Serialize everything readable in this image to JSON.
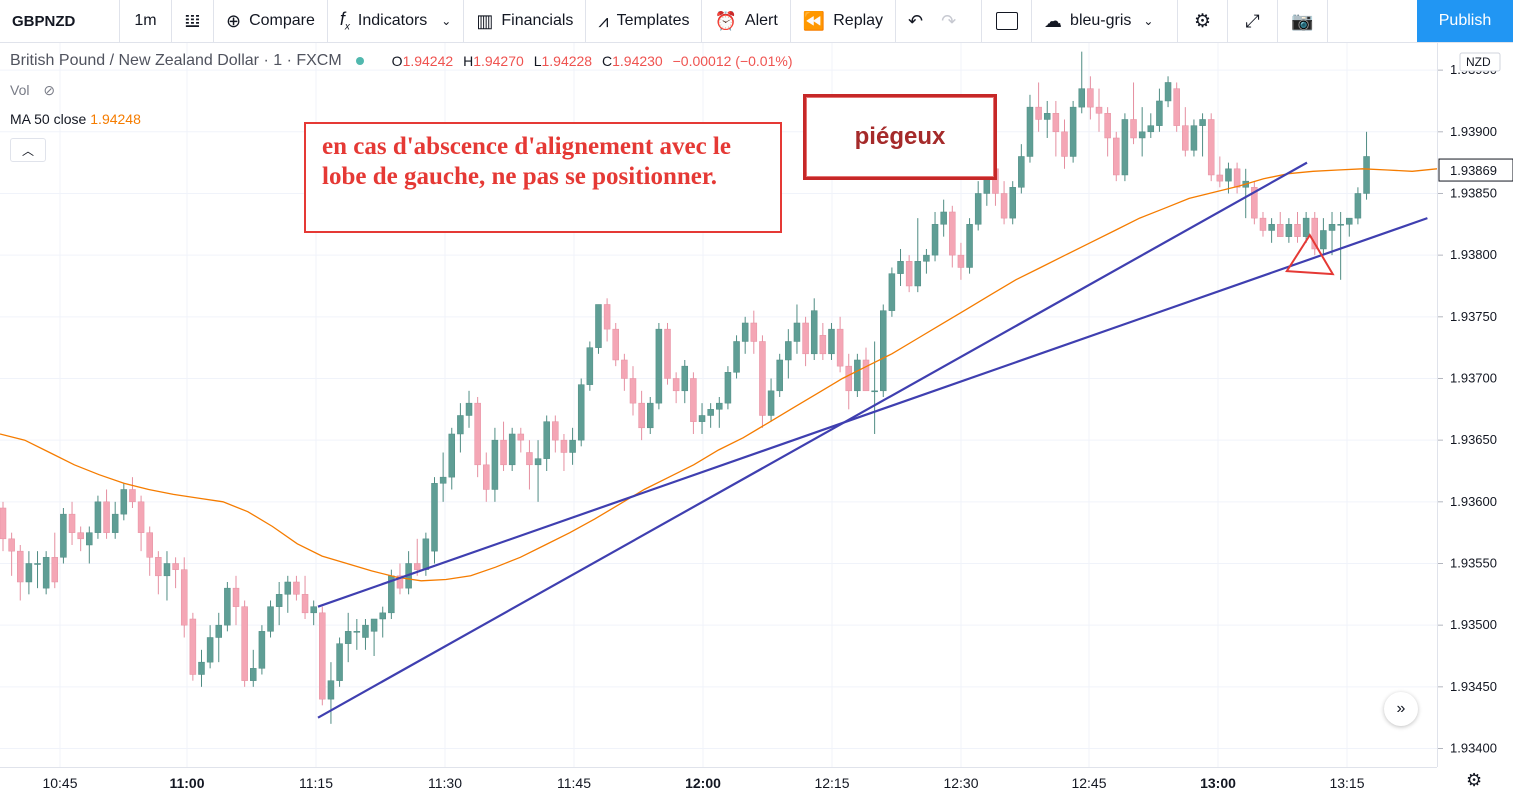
{
  "toolbar": {
    "symbol": "GBPNZD",
    "interval": "1m",
    "compare": "Compare",
    "indicators": "Indicators",
    "financials": "Financials",
    "templates": "Templates",
    "alert": "Alert",
    "replay": "Replay",
    "layout_name": "bleu-gris",
    "publish": "Publish"
  },
  "legend": {
    "title": "British Pound / New Zealand Dollar · 1 · FXCM",
    "o_label": "O",
    "o": "1.94242",
    "h_label": "H",
    "h": "1.94270",
    "l_label": "L",
    "l": "1.94228",
    "c_label": "C",
    "c": "1.94230",
    "change": "−0.00012 (−0.01%)",
    "vol": "Vol",
    "ma_label": "MA 50 close",
    "ma_value": "1.94248"
  },
  "annotations": {
    "note1": "en cas d'abscence d'alignement avec le lobe de gauche, ne pas se positionner.",
    "note2": "piégeux"
  },
  "price_axis": {
    "currency": "NZD",
    "current_price": "1.93869",
    "ticks": [
      "1.93950",
      "1.93900",
      "1.93850",
      "1.93800",
      "1.93750",
      "1.93700",
      "1.93650",
      "1.93600",
      "1.93550",
      "1.93500",
      "1.93450",
      "1.93400"
    ]
  },
  "time_axis": {
    "ticks": [
      "10:45",
      "11:00",
      "11:15",
      "11:30",
      "11:45",
      "12:00",
      "12:15",
      "12:30",
      "12:45",
      "13:00",
      "13:15"
    ]
  },
  "colors": {
    "up": "#5f9e95",
    "down": "#f4a6b5",
    "ma": "#f57c00",
    "trend": "#3f3fb0",
    "annot": "#e53935"
  },
  "chart_data": {
    "type": "candlestick",
    "symbol": "GBPNZD",
    "price_range": [
      1.93385,
      1.93972
    ],
    "ma_label": "MA 50 close",
    "candles": [
      [
        1.93595,
        1.936,
        1.9356,
        1.9357
      ],
      [
        1.9357,
        1.93575,
        1.9354,
        1.9356
      ],
      [
        1.9356,
        1.93565,
        1.9352,
        1.93535
      ],
      [
        1.93535,
        1.9356,
        1.93525,
        1.9355
      ],
      [
        1.9355,
        1.9356,
        1.9353,
        1.9355
      ],
      [
        1.9353,
        1.9356,
        1.93525,
        1.93555
      ],
      [
        1.93555,
        1.93575,
        1.9353,
        1.93535
      ],
      [
        1.93555,
        1.93595,
        1.9355,
        1.9359
      ],
      [
        1.9359,
        1.936,
        1.93565,
        1.93575
      ],
      [
        1.93575,
        1.9358,
        1.9356,
        1.9357
      ],
      [
        1.93565,
        1.9358,
        1.9355,
        1.93575
      ],
      [
        1.93575,
        1.93605,
        1.9357,
        1.936
      ],
      [
        1.936,
        1.9361,
        1.9357,
        1.93575
      ],
      [
        1.93575,
        1.936,
        1.9357,
        1.9359
      ],
      [
        1.9359,
        1.93615,
        1.93585,
        1.9361
      ],
      [
        1.9361,
        1.9362,
        1.93595,
        1.936
      ],
      [
        1.936,
        1.93605,
        1.9356,
        1.93575
      ],
      [
        1.93575,
        1.9358,
        1.9354,
        1.93555
      ],
      [
        1.93555,
        1.9356,
        1.93525,
        1.9354
      ],
      [
        1.9354,
        1.9356,
        1.9352,
        1.9355
      ],
      [
        1.9355,
        1.93555,
        1.9353,
        1.93545
      ],
      [
        1.93545,
        1.93555,
        1.9349,
        1.935
      ],
      [
        1.93505,
        1.9351,
        1.93455,
        1.9346
      ],
      [
        1.9346,
        1.9348,
        1.9345,
        1.9347
      ],
      [
        1.9347,
        1.935,
        1.93465,
        1.9349
      ],
      [
        1.9349,
        1.9351,
        1.9347,
        1.935
      ],
      [
        1.935,
        1.93535,
        1.93495,
        1.9353
      ],
      [
        1.9353,
        1.9354,
        1.935,
        1.93515
      ],
      [
        1.93515,
        1.9352,
        1.9345,
        1.93455
      ],
      [
        1.93455,
        1.9348,
        1.9345,
        1.93465
      ],
      [
        1.93465,
        1.935,
        1.9346,
        1.93495
      ],
      [
        1.93495,
        1.9352,
        1.9349,
        1.93515
      ],
      [
        1.93515,
        1.93535,
        1.935,
        1.93525
      ],
      [
        1.93525,
        1.9354,
        1.9351,
        1.93535
      ],
      [
        1.93535,
        1.9354,
        1.9352,
        1.93525
      ],
      [
        1.93525,
        1.9354,
        1.93505,
        1.9351
      ],
      [
        1.9351,
        1.9352,
        1.935,
        1.93515
      ],
      [
        1.9351,
        1.93515,
        1.93435,
        1.9344
      ],
      [
        1.9344,
        1.9347,
        1.9342,
        1.93455
      ],
      [
        1.93455,
        1.9349,
        1.9345,
        1.93485
      ],
      [
        1.93485,
        1.9351,
        1.9347,
        1.93495
      ],
      [
        1.93495,
        1.93505,
        1.9348,
        1.93495
      ],
      [
        1.9349,
        1.93505,
        1.9348,
        1.935
      ],
      [
        1.93495,
        1.93505,
        1.93475,
        1.93505
      ],
      [
        1.93505,
        1.93515,
        1.9349,
        1.9351
      ],
      [
        1.9351,
        1.93545,
        1.93505,
        1.9354
      ],
      [
        1.9354,
        1.9355,
        1.93525,
        1.9353
      ],
      [
        1.9353,
        1.9356,
        1.93525,
        1.9355
      ],
      [
        1.9355,
        1.9357,
        1.9354,
        1.93545
      ],
      [
        1.93545,
        1.93575,
        1.9354,
        1.9357
      ],
      [
        1.9356,
        1.9362,
        1.9355,
        1.93615
      ],
      [
        1.93615,
        1.9364,
        1.936,
        1.9362
      ],
      [
        1.9362,
        1.9366,
        1.9361,
        1.93655
      ],
      [
        1.93655,
        1.9368,
        1.9364,
        1.9367
      ],
      [
        1.9367,
        1.9369,
        1.9366,
        1.9368
      ],
      [
        1.9368,
        1.93685,
        1.9362,
        1.9363
      ],
      [
        1.9363,
        1.9364,
        1.936,
        1.9361
      ],
      [
        1.9361,
        1.9366,
        1.936,
        1.9365
      ],
      [
        1.9365,
        1.93665,
        1.93625,
        1.9363
      ],
      [
        1.9363,
        1.9366,
        1.93625,
        1.93655
      ],
      [
        1.93655,
        1.9366,
        1.9364,
        1.9365
      ],
      [
        1.9364,
        1.9365,
        1.9361,
        1.9363
      ],
      [
        1.9363,
        1.9365,
        1.936,
        1.93635
      ],
      [
        1.93635,
        1.9367,
        1.93625,
        1.93665
      ],
      [
        1.93665,
        1.9367,
        1.9364,
        1.9365
      ],
      [
        1.9365,
        1.93655,
        1.93625,
        1.9364
      ],
      [
        1.9364,
        1.9366,
        1.9363,
        1.9365
      ],
      [
        1.9365,
        1.937,
        1.93645,
        1.93695
      ],
      [
        1.93695,
        1.9373,
        1.9369,
        1.93725
      ],
      [
        1.93725,
        1.9376,
        1.9372,
        1.9376
      ],
      [
        1.9376,
        1.93765,
        1.9373,
        1.9374
      ],
      [
        1.9374,
        1.93745,
        1.9371,
        1.93715
      ],
      [
        1.93715,
        1.9372,
        1.9369,
        1.937
      ],
      [
        1.937,
        1.9371,
        1.9367,
        1.9368
      ],
      [
        1.9368,
        1.9369,
        1.9365,
        1.9366
      ],
      [
        1.9366,
        1.93685,
        1.93655,
        1.9368
      ],
      [
        1.9368,
        1.93745,
        1.93675,
        1.9374
      ],
      [
        1.9374,
        1.93745,
        1.93695,
        1.937
      ],
      [
        1.937,
        1.93705,
        1.9368,
        1.9369
      ],
      [
        1.9369,
        1.93715,
        1.9368,
        1.9371
      ],
      [
        1.937,
        1.93705,
        1.93655,
        1.93665
      ],
      [
        1.93665,
        1.9368,
        1.93655,
        1.9367
      ],
      [
        1.9367,
        1.9368,
        1.9366,
        1.93675
      ],
      [
        1.93675,
        1.93685,
        1.9366,
        1.9368
      ],
      [
        1.9368,
        1.9371,
        1.93675,
        1.93705
      ],
      [
        1.93705,
        1.93735,
        1.937,
        1.9373
      ],
      [
        1.9373,
        1.9375,
        1.9372,
        1.93745
      ],
      [
        1.93745,
        1.93755,
        1.9372,
        1.9373
      ],
      [
        1.9373,
        1.93735,
        1.9366,
        1.9367
      ],
      [
        1.9367,
        1.937,
        1.93665,
        1.9369
      ],
      [
        1.9369,
        1.9372,
        1.93685,
        1.93715
      ],
      [
        1.93715,
        1.9374,
        1.937,
        1.9373
      ],
      [
        1.9373,
        1.9376,
        1.9372,
        1.93745
      ],
      [
        1.93745,
        1.9375,
        1.9371,
        1.9372
      ],
      [
        1.9372,
        1.93765,
        1.93715,
        1.93755
      ],
      [
        1.93735,
        1.93745,
        1.93715,
        1.9372
      ],
      [
        1.9372,
        1.93745,
        1.93715,
        1.9374
      ],
      [
        1.9374,
        1.9375,
        1.93705,
        1.9371
      ],
      [
        1.9371,
        1.9372,
        1.93675,
        1.9369
      ],
      [
        1.9369,
        1.9372,
        1.93685,
        1.93715
      ],
      [
        1.93715,
        1.93725,
        1.9369,
        1.9369
      ],
      [
        1.9369,
        1.9373,
        1.93655,
        1.9369
      ],
      [
        1.9369,
        1.9376,
        1.93685,
        1.93755
      ],
      [
        1.93755,
        1.9379,
        1.9375,
        1.93785
      ],
      [
        1.93785,
        1.93805,
        1.93775,
        1.93795
      ],
      [
        1.93795,
        1.938,
        1.9377,
        1.93775
      ],
      [
        1.93775,
        1.9383,
        1.9377,
        1.93795
      ],
      [
        1.93795,
        1.93805,
        1.93785,
        1.938
      ],
      [
        1.938,
        1.93835,
        1.93795,
        1.93825
      ],
      [
        1.93825,
        1.93845,
        1.93815,
        1.93835
      ],
      [
        1.93835,
        1.9384,
        1.9379,
        1.938
      ],
      [
        1.938,
        1.9381,
        1.9378,
        1.9379
      ],
      [
        1.9379,
        1.9383,
        1.93785,
        1.93825
      ],
      [
        1.93825,
        1.9386,
        1.9382,
        1.9385
      ],
      [
        1.9385,
        1.93875,
        1.9384,
        1.9387
      ],
      [
        1.9387,
        1.93875,
        1.9384,
        1.9385
      ],
      [
        1.9385,
        1.9386,
        1.93825,
        1.9383
      ],
      [
        1.9383,
        1.9386,
        1.93825,
        1.93855
      ],
      [
        1.93855,
        1.9389,
        1.9385,
        1.9388
      ],
      [
        1.9388,
        1.9393,
        1.93875,
        1.9392
      ],
      [
        1.9392,
        1.9394,
        1.939,
        1.9391
      ],
      [
        1.9391,
        1.93925,
        1.93895,
        1.93915
      ],
      [
        1.93915,
        1.93925,
        1.9388,
        1.939
      ],
      [
        1.939,
        1.9391,
        1.9387,
        1.9388
      ],
      [
        1.9388,
        1.93925,
        1.93875,
        1.9392
      ],
      [
        1.9392,
        1.93965,
        1.93915,
        1.93935
      ],
      [
        1.93935,
        1.93945,
        1.9391,
        1.9392
      ],
      [
        1.9392,
        1.93935,
        1.939,
        1.93915
      ],
      [
        1.93915,
        1.9392,
        1.9388,
        1.93895
      ],
      [
        1.93895,
        1.939,
        1.9386,
        1.93865
      ],
      [
        1.93865,
        1.93915,
        1.9386,
        1.9391
      ],
      [
        1.9391,
        1.9394,
        1.9389,
        1.93895
      ],
      [
        1.93895,
        1.9392,
        1.9388,
        1.939
      ],
      [
        1.939,
        1.93915,
        1.93895,
        1.93905
      ],
      [
        1.93905,
        1.93935,
        1.939,
        1.93925
      ],
      [
        1.93925,
        1.93945,
        1.9392,
        1.9394
      ],
      [
        1.93935,
        1.9394,
        1.939,
        1.93905
      ],
      [
        1.93905,
        1.9392,
        1.9388,
        1.93885
      ],
      [
        1.93885,
        1.9391,
        1.9388,
        1.93905
      ],
      [
        1.93905,
        1.93915,
        1.9388,
        1.9391
      ],
      [
        1.9391,
        1.93915,
        1.9386,
        1.93865
      ],
      [
        1.93865,
        1.9388,
        1.93855,
        1.9386
      ],
      [
        1.9386,
        1.93875,
        1.9385,
        1.9387
      ],
      [
        1.9387,
        1.93875,
        1.9385,
        1.93855
      ],
      [
        1.93855,
        1.9387,
        1.9383,
        1.9386
      ],
      [
        1.93855,
        1.9386,
        1.93825,
        1.9383
      ],
      [
        1.9383,
        1.93835,
        1.93815,
        1.9382
      ],
      [
        1.9382,
        1.9383,
        1.9381,
        1.93825
      ],
      [
        1.93825,
        1.93835,
        1.93815,
        1.93815
      ],
      [
        1.93815,
        1.9383,
        1.9381,
        1.93825
      ],
      [
        1.93825,
        1.93835,
        1.9381,
        1.93815
      ],
      [
        1.93815,
        1.93835,
        1.9381,
        1.9383
      ],
      [
        1.9383,
        1.93835,
        1.938,
        1.93805
      ],
      [
        1.93805,
        1.9383,
        1.938,
        1.9382
      ],
      [
        1.9382,
        1.93835,
        1.938,
        1.93825
      ],
      [
        1.93825,
        1.93835,
        1.9378,
        1.93825
      ],
      [
        1.93825,
        1.9383,
        1.93815,
        1.9383
      ],
      [
        1.9383,
        1.93855,
        1.93825,
        1.9385
      ],
      [
        1.9385,
        1.939,
        1.93845,
        1.9388
      ]
    ],
    "ma": [
      1.93655,
      1.9365,
      1.9364,
      1.9363,
      1.93622,
      1.93615,
      1.9361,
      1.93606,
      1.93603,
      1.936,
      1.93592,
      1.9358,
      1.93566,
      1.93556,
      1.9355,
      1.93544,
      1.93539,
      1.93536,
      1.93537,
      1.9354,
      1.93547,
      1.93555,
      1.93565,
      1.93575,
      1.93586,
      1.93598,
      1.9361,
      1.9362,
      1.9363,
      1.93642,
      1.93652,
      1.93664,
      1.93676,
      1.93688,
      1.937,
      1.9371,
      1.9372,
      1.93732,
      1.93744,
      1.93756,
      1.93768,
      1.9378,
      1.9379,
      1.938,
      1.9381,
      1.9382,
      1.9383,
      1.93838,
      1.93846,
      1.93851,
      1.93856,
      1.93862,
      1.93866,
      1.93868,
      1.93869,
      1.9387,
      1.93869,
      1.93868,
      1.9387
    ],
    "trendlines": [
      {
        "from": [
          "11:15",
          1.93515
        ],
        "to": [
          "13:24",
          1.9383
        ]
      },
      {
        "from": [
          "11:15",
          1.93425
        ],
        "to": [
          "13:10",
          1.93875
        ]
      }
    ],
    "marker": {
      "type": "triangle",
      "at": [
        "13:08",
        1.938
      ]
    }
  }
}
